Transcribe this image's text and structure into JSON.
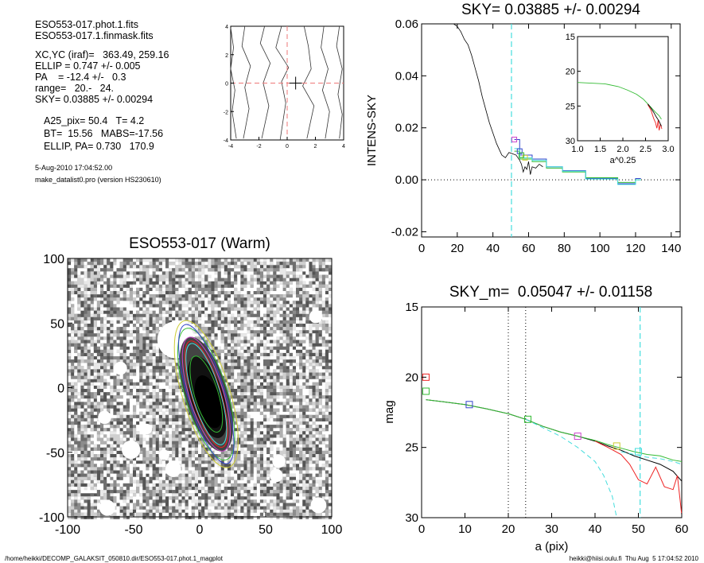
{
  "info": {
    "file1": "ESO553-017.phot.1.fits",
    "file2": "ESO553-017.1.finmask.fits",
    "xcyc": "XC,YC (iraf)=   363.49, 259.16",
    "ellip": "ELLIP = 0.747 +/- 0.005",
    "pa": "PA    = -12.4 +/-   0.3",
    "range": "range=   20.-   24.",
    "sky": "SKY= 0.03885 +/- 0.00294",
    "a25": "A25_pix= 50.4   T= 4.2",
    "bt": "BT=  15.56   MABS=-17.56",
    "ellip_pa": "ELLIP, PA= 0.730   170.9",
    "date": "5-Aug-2010 17:04:52.00",
    "program": "make_datalist0.pro (version HS230610)"
  },
  "footer": {
    "path": "/home/heikki/DECOMP_GALAKSIT_050810.dir/ESO553-017.phot.1_magplot",
    "user": "heikki@hiisi.oulu.fi  Thu Aug  5 17:04:52 2010"
  },
  "colors": {
    "cyan": "#44dddd",
    "red": "#ee2222",
    "green": "#33bb33",
    "blue": "#3344cc",
    "magenta": "#cc44cc",
    "yellow": "#cccc33",
    "refline": "#ee7777"
  },
  "chart_data": [
    {
      "type": "line",
      "id": "contour-panel",
      "title": "",
      "xlim": [
        -4,
        4
      ],
      "ylim": [
        -4,
        4
      ],
      "xticks": [
        "-4",
        "-2",
        "0",
        "2",
        "4"
      ],
      "yticks": [
        "-4",
        "-2",
        "0",
        "2",
        "4"
      ],
      "contours": [
        [
          [
            -4,
            3.9
          ],
          [
            -3.8,
            2.5
          ],
          [
            -4,
            1
          ],
          [
            -3.7,
            -0.5
          ],
          [
            -3.9,
            -2
          ],
          [
            -3.6,
            -3.9
          ]
        ],
        [
          [
            -3,
            4
          ],
          [
            -3.2,
            2.6
          ],
          [
            -2.6,
            1.2
          ],
          [
            -3,
            -0.3
          ],
          [
            -2.7,
            -1.8
          ],
          [
            -3.1,
            -3.9
          ]
        ],
        [
          [
            -1.6,
            4
          ],
          [
            -1.9,
            2.8
          ],
          [
            -1.2,
            1.4
          ],
          [
            -1.7,
            0
          ],
          [
            -1.3,
            -1.6
          ],
          [
            -1.8,
            -3.9
          ]
        ],
        [
          [
            -0.4,
            4
          ],
          [
            -0.8,
            2.5
          ],
          [
            0.1,
            1.1
          ],
          [
            -0.4,
            0.1
          ],
          [
            -0.1,
            -1.4
          ],
          [
            -0.5,
            -4
          ]
        ],
        [
          [
            1.2,
            4
          ],
          [
            1.5,
            2.6
          ],
          [
            1.7,
            1
          ],
          [
            1.1,
            -0.2
          ],
          [
            1.9,
            -1.6
          ],
          [
            1.4,
            -3.9
          ]
        ],
        [
          [
            2.6,
            4
          ],
          [
            2.4,
            2.5
          ],
          [
            2.9,
            1
          ],
          [
            2.5,
            -0.5
          ],
          [
            3,
            -2
          ],
          [
            2.7,
            -3.9
          ]
        ],
        [
          [
            3.7,
            4
          ],
          [
            3.5,
            2.6
          ],
          [
            3.9,
            1
          ],
          [
            3.6,
            -0.8
          ],
          [
            3.9,
            -2.2
          ],
          [
            3.7,
            -3.9
          ]
        ]
      ],
      "crosshair_x": 0,
      "crosshair_y": 0,
      "center": [
        0.6,
        0
      ]
    },
    {
      "type": "line",
      "id": "sky-profile",
      "title": "SKY= 0.03885 +/- 0.00294",
      "xlabel": "",
      "ylabel": "INTENS-SKY",
      "xlim": [
        0,
        145
      ],
      "ylim": [
        -0.022,
        0.06
      ],
      "xticks": [
        "0",
        "20",
        "40",
        "60",
        "80",
        "100",
        "120",
        "140"
      ],
      "yticks": [
        "-0.02",
        "0.00",
        "0.02",
        "0.04",
        "0.06"
      ],
      "ytick_values": [
        -0.02,
        0,
        0.02,
        0.04,
        0.06
      ],
      "vline_x": 50.4,
      "series": [
        {
          "color": "black",
          "x": [
            18,
            20,
            22,
            24,
            26,
            28,
            30,
            32,
            34,
            36,
            38,
            40,
            42,
            44,
            45,
            47,
            49,
            51,
            53,
            55,
            56,
            57,
            58,
            59,
            60,
            61,
            62,
            64,
            66,
            68
          ],
          "y": [
            0.06,
            0.059,
            0.057,
            0.054,
            0.052,
            0.048,
            0.043,
            0.038,
            0.032,
            0.027,
            0.022,
            0.018,
            0.014,
            0.011,
            0.0095,
            0.0085,
            0.0105,
            0.01,
            0.0095,
            0.0075,
            0.006,
            0.003,
            0.005,
            0.004,
            0.007,
            0.002,
            0.005,
            0.0045,
            0.006,
            0.005
          ]
        }
      ],
      "steps": [
        {
          "color": "#3344cc",
          "points": [
            [
              52,
              0.0155
            ],
            [
              55,
              0.0155
            ],
            [
              55,
              0.0095
            ],
            [
              62,
              0.0095
            ],
            [
              62,
              0.008
            ],
            [
              70,
              0.008
            ],
            [
              70,
              0.005
            ],
            [
              79,
              0.005
            ],
            [
              79,
              0.0035
            ],
            [
              92,
              0.0035
            ],
            [
              92,
              0.0005
            ],
            [
              110,
              0.0005
            ],
            [
              110,
              -0.0015
            ],
            [
              120,
              -0.0015
            ],
            [
              120,
              0.0005
            ],
            [
              123,
              0.0005
            ]
          ]
        },
        {
          "color": "#33bb33",
          "points": [
            [
              52,
              0.011
            ],
            [
              55,
              0.011
            ],
            [
              55,
              0.008
            ],
            [
              62,
              0.008
            ],
            [
              62,
              0.007
            ],
            [
              70,
              0.007
            ],
            [
              70,
              0.0045
            ],
            [
              79,
              0.0045
            ],
            [
              79,
              0.003
            ],
            [
              92,
              0.003
            ],
            [
              92,
              0.0008
            ],
            [
              110,
              0.0008
            ],
            [
              110,
              -0.001
            ],
            [
              120,
              -0.001
            ],
            [
              120,
              0.0
            ],
            [
              123,
              0.0
            ]
          ]
        },
        {
          "color": "#44dddd",
          "points": [
            [
              52,
              0.012
            ],
            [
              55,
              0.012
            ],
            [
              55,
              0.0085
            ],
            [
              62,
              0.0085
            ],
            [
              62,
              0.0075
            ],
            [
              70,
              0.0075
            ],
            [
              70,
              0.005
            ],
            [
              79,
              0.005
            ],
            [
              79,
              0.0033
            ],
            [
              92,
              0.0033
            ],
            [
              92,
              0.0003
            ],
            [
              110,
              0.0003
            ],
            [
              110,
              -0.0018
            ],
            [
              120,
              -0.0018
            ],
            [
              120,
              0.0
            ],
            [
              123,
              0.0
            ]
          ]
        }
      ],
      "markers": [
        {
          "color": "#cc44cc",
          "x": 52,
          "y": 0.0155
        },
        {
          "color": "#3344cc",
          "x": 55,
          "y": 0.011
        },
        {
          "color": "#cccc33",
          "x": 58,
          "y": 0.0085
        },
        {
          "color": "#33bb33",
          "x": 56,
          "y": 0.0095
        }
      ]
    },
    {
      "type": "line",
      "id": "inset",
      "title": "",
      "xlabel": "a^0.25",
      "ylabel": "",
      "xlim": [
        1.0,
        3.0
      ],
      "ylim": [
        30,
        15
      ],
      "xticks": [
        "1.0",
        "1.5",
        "2.0",
        "2.5",
        "3.0"
      ],
      "xtick_values": [
        1.0,
        1.5,
        2.0,
        2.5,
        3.0
      ],
      "yticks": [
        "15",
        "20",
        "25",
        "30"
      ],
      "ytick_values": [
        15,
        20,
        25,
        30
      ],
      "series": [
        {
          "color": "#33bb33",
          "x": [
            1,
            1.3,
            1.6,
            1.9,
            2.1,
            2.3,
            2.45,
            2.55,
            2.65,
            2.72,
            2.8,
            2.85
          ],
          "y": [
            21.6,
            21.7,
            21.8,
            22.2,
            22.7,
            23.3,
            24.0,
            24.7,
            25.4,
            25.9,
            26.4,
            26.9
          ]
        },
        {
          "color": "#ee2222",
          "x": [
            2.55,
            2.62,
            2.68,
            2.72,
            2.75,
            2.78,
            2.8,
            2.83,
            2.86
          ],
          "y": [
            24.8,
            25.6,
            26.8,
            27.4,
            28.2,
            27.0,
            28.5,
            27.6,
            28.3
          ]
        },
        {
          "color": "#000000",
          "x": [
            2.55,
            2.62,
            2.68,
            2.74,
            2.8,
            2.85
          ],
          "y": [
            24.7,
            25.3,
            25.9,
            26.6,
            27.2,
            27.9
          ]
        }
      ]
    },
    {
      "type": "heatmap",
      "id": "galaxy-image",
      "title": "ESO553-017 (Warm)",
      "xlim": [
        -100,
        100
      ],
      "ylim": [
        -100,
        100
      ],
      "xticks": [
        "-100",
        "-50",
        "0",
        "50",
        "100"
      ],
      "yticks": [
        "-100",
        "-50",
        "0",
        "50",
        "100"
      ],
      "tick_values": [
        -100,
        -50,
        0,
        50,
        100
      ],
      "blank_stars": [
        [
          -18,
          37,
          14
        ],
        [
          -60,
          15,
          5
        ],
        [
          88,
          55,
          5
        ],
        [
          -52,
          -48,
          7
        ],
        [
          -72,
          -23,
          5
        ],
        [
          58,
          -68,
          5
        ],
        [
          -20,
          -63,
          6
        ],
        [
          60,
          -57,
          5
        ],
        [
          90,
          -91,
          6
        ],
        [
          -70,
          -93,
          6
        ],
        [
          -27,
          -52,
          4
        ],
        [
          -40,
          -32,
          4
        ]
      ],
      "galaxy": {
        "cx": 5,
        "cy": -5,
        "pa_deg": -17,
        "a": 46,
        "b": 13
      },
      "isophotes": [
        {
          "a": 58,
          "b": 18,
          "color": "#cccc33"
        },
        {
          "a": 52,
          "b": 16,
          "color": "#33bb33"
        },
        {
          "a": 45,
          "b": 13,
          "color": "#cc44cc"
        },
        {
          "a": 42,
          "b": 11,
          "color": "#ee2222"
        },
        {
          "a": 40,
          "b": 10.5,
          "color": "#44dddd"
        },
        {
          "a": 30,
          "b": 9,
          "color": "#33bb33"
        },
        {
          "a": 55,
          "b": 14,
          "color": "#3344cc"
        }
      ]
    },
    {
      "type": "line",
      "id": "mag-profile",
      "title": "SKY_m=  0.05047 +/- 0.01158",
      "xlabel": "a (pix)",
      "ylabel": "mag",
      "xlim": [
        0,
        60
      ],
      "ylim": [
        30,
        15
      ],
      "xticks": [
        "0",
        "10",
        "20",
        "30",
        "40",
        "50",
        "60"
      ],
      "xtick_values": [
        0,
        10,
        20,
        30,
        40,
        50,
        60
      ],
      "yticks": [
        "15",
        "20",
        "25",
        "30"
      ],
      "ytick_values": [
        15,
        20,
        25,
        30
      ],
      "vlines_dotted": [
        20,
        24
      ],
      "vline_dashed": 50.4,
      "series": [
        {
          "color": "#000000",
          "x": [
            1,
            5,
            10,
            15,
            20,
            24,
            28,
            32,
            36,
            40,
            43,
            46,
            49,
            52,
            55,
            58,
            60
          ],
          "y": [
            21.6,
            21.75,
            21.95,
            22.25,
            22.6,
            23.0,
            23.5,
            23.9,
            24.2,
            24.55,
            24.9,
            25.2,
            25.6,
            25.9,
            26.2,
            26.7,
            27.4
          ]
        },
        {
          "color": "#33bb33",
          "x": [
            1,
            5,
            10,
            15,
            20,
            24,
            28,
            32,
            36,
            40,
            43,
            46,
            49,
            52,
            55,
            58,
            60
          ],
          "y": [
            21.6,
            21.75,
            21.95,
            22.25,
            22.6,
            23.0,
            23.5,
            23.9,
            24.2,
            24.5,
            24.8,
            25.05,
            25.3,
            25.5,
            25.6,
            25.9,
            26.0
          ]
        },
        {
          "color": "#ee2222",
          "x": [
            40,
            43,
            46,
            48,
            50,
            52,
            54,
            56,
            58,
            59,
            60
          ],
          "y": [
            24.55,
            25.0,
            25.5,
            26.2,
            27.3,
            27.6,
            26.4,
            27.8,
            28.0,
            27.0,
            29.8
          ]
        },
        {
          "color": "#44dddd",
          "x": [
            24,
            28,
            32,
            36,
            40,
            42,
            44,
            45
          ],
          "y": [
            23.0,
            23.6,
            24.2,
            25.0,
            26.0,
            27.0,
            28.5,
            30.0
          ]
        },
        {
          "color": "#44dddd",
          "x": [
            46,
            49,
            52,
            55,
            58,
            60
          ],
          "y": [
            25.3,
            25.5,
            25.7,
            25.8,
            26.0,
            26.2
          ]
        }
      ],
      "markers": [
        {
          "color": "#ee2222",
          "x": 1,
          "y": 20.0
        },
        {
          "color": "#33bb33",
          "x": 1,
          "y": 21.0
        },
        {
          "color": "#3344cc",
          "x": 11,
          "y": 21.95
        },
        {
          "color": "#33bb33",
          "x": 24.5,
          "y": 23.0
        },
        {
          "color": "#cc44cc",
          "x": 36,
          "y": 24.2
        },
        {
          "color": "#cccc33",
          "x": 45,
          "y": 24.9
        },
        {
          "color": "#44dddd",
          "x": 50,
          "y": 25.3
        }
      ]
    }
  ]
}
